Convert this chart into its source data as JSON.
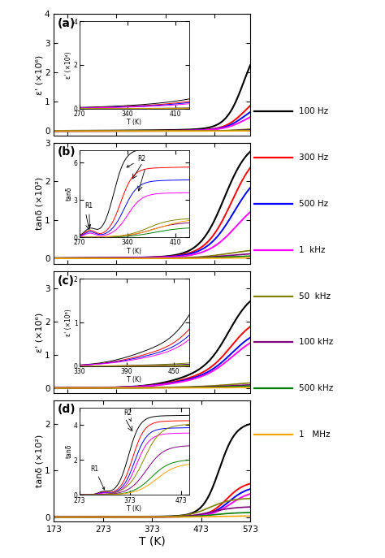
{
  "freq_labels": [
    "100 Hz",
    "300 Hz",
    "500 Hz",
    "1  kHz",
    "50  kHz",
    "100 kHz",
    "500 kHz",
    "1   MHz"
  ],
  "freq_colors": [
    "black",
    "red",
    "blue",
    "magenta",
    "#808000",
    "purple",
    "green",
    "orange"
  ],
  "freq_lw": [
    1.5,
    1.4,
    1.4,
    1.4,
    1.2,
    1.2,
    1.2,
    1.2
  ],
  "T_main_min": 173,
  "T_main_max": 573,
  "panel_labels": [
    "(a)",
    "(b)",
    "(c)",
    "(d)"
  ]
}
